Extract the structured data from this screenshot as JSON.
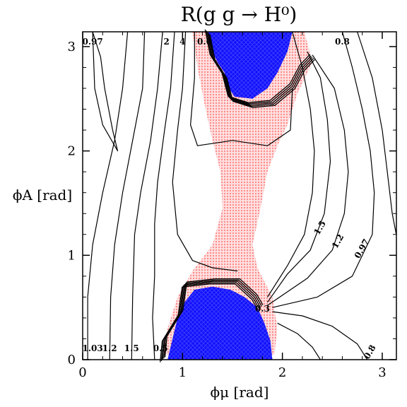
{
  "chart_data": {
    "type": "contour",
    "title": "R(g  g  →  H⁰)",
    "xlabel": "ϕμ [rad]",
    "ylabel": "ϕA [rad]",
    "xlim": [
      0,
      3.14159
    ],
    "ylim": [
      0,
      3.14159
    ],
    "xticks": [
      0,
      1,
      2,
      3
    ],
    "yticks": [
      0,
      1,
      2,
      3
    ],
    "colors": {
      "excluded_points": "#1010ff",
      "allowed_points": "#ff6b6b",
      "contour": "#000000"
    },
    "contour_labels": [
      {
        "text": "0.97",
        "x": 0.1,
        "y": 3.02,
        "rot": 0
      },
      {
        "text": "2",
        "x": 0.84,
        "y": 3.02,
        "rot": 0
      },
      {
        "text": "4",
        "x": 1.0,
        "y": 3.02,
        "rot": 0
      },
      {
        "text": "0.6",
        "x": 1.22,
        "y": 3.02,
        "rot": 0
      },
      {
        "text": "0.8",
        "x": 2.6,
        "y": 3.02,
        "rot": 0
      },
      {
        "text": "1.5",
        "x": 2.4,
        "y": 1.25,
        "rot": -60
      },
      {
        "text": "1.2",
        "x": 2.58,
        "y": 1.12,
        "rot": -60
      },
      {
        "text": "0.97",
        "x": 2.82,
        "y": 1.05,
        "rot": -60
      },
      {
        "text": "0.3",
        "x": 1.8,
        "y": 0.46,
        "rot": 0
      },
      {
        "text": "1.03",
        "x": 0.1,
        "y": 0.08,
        "rot": 0
      },
      {
        "text": "1.2",
        "x": 0.27,
        "y": 0.08,
        "rot": 0
      },
      {
        "text": "1.5",
        "x": 0.49,
        "y": 0.08,
        "rot": 0
      },
      {
        "text": "0.5",
        "x": 0.78,
        "y": 0.08,
        "rot": 0
      },
      {
        "text": "0.8",
        "x": 2.9,
        "y": 0.06,
        "rot": -60
      }
    ]
  }
}
